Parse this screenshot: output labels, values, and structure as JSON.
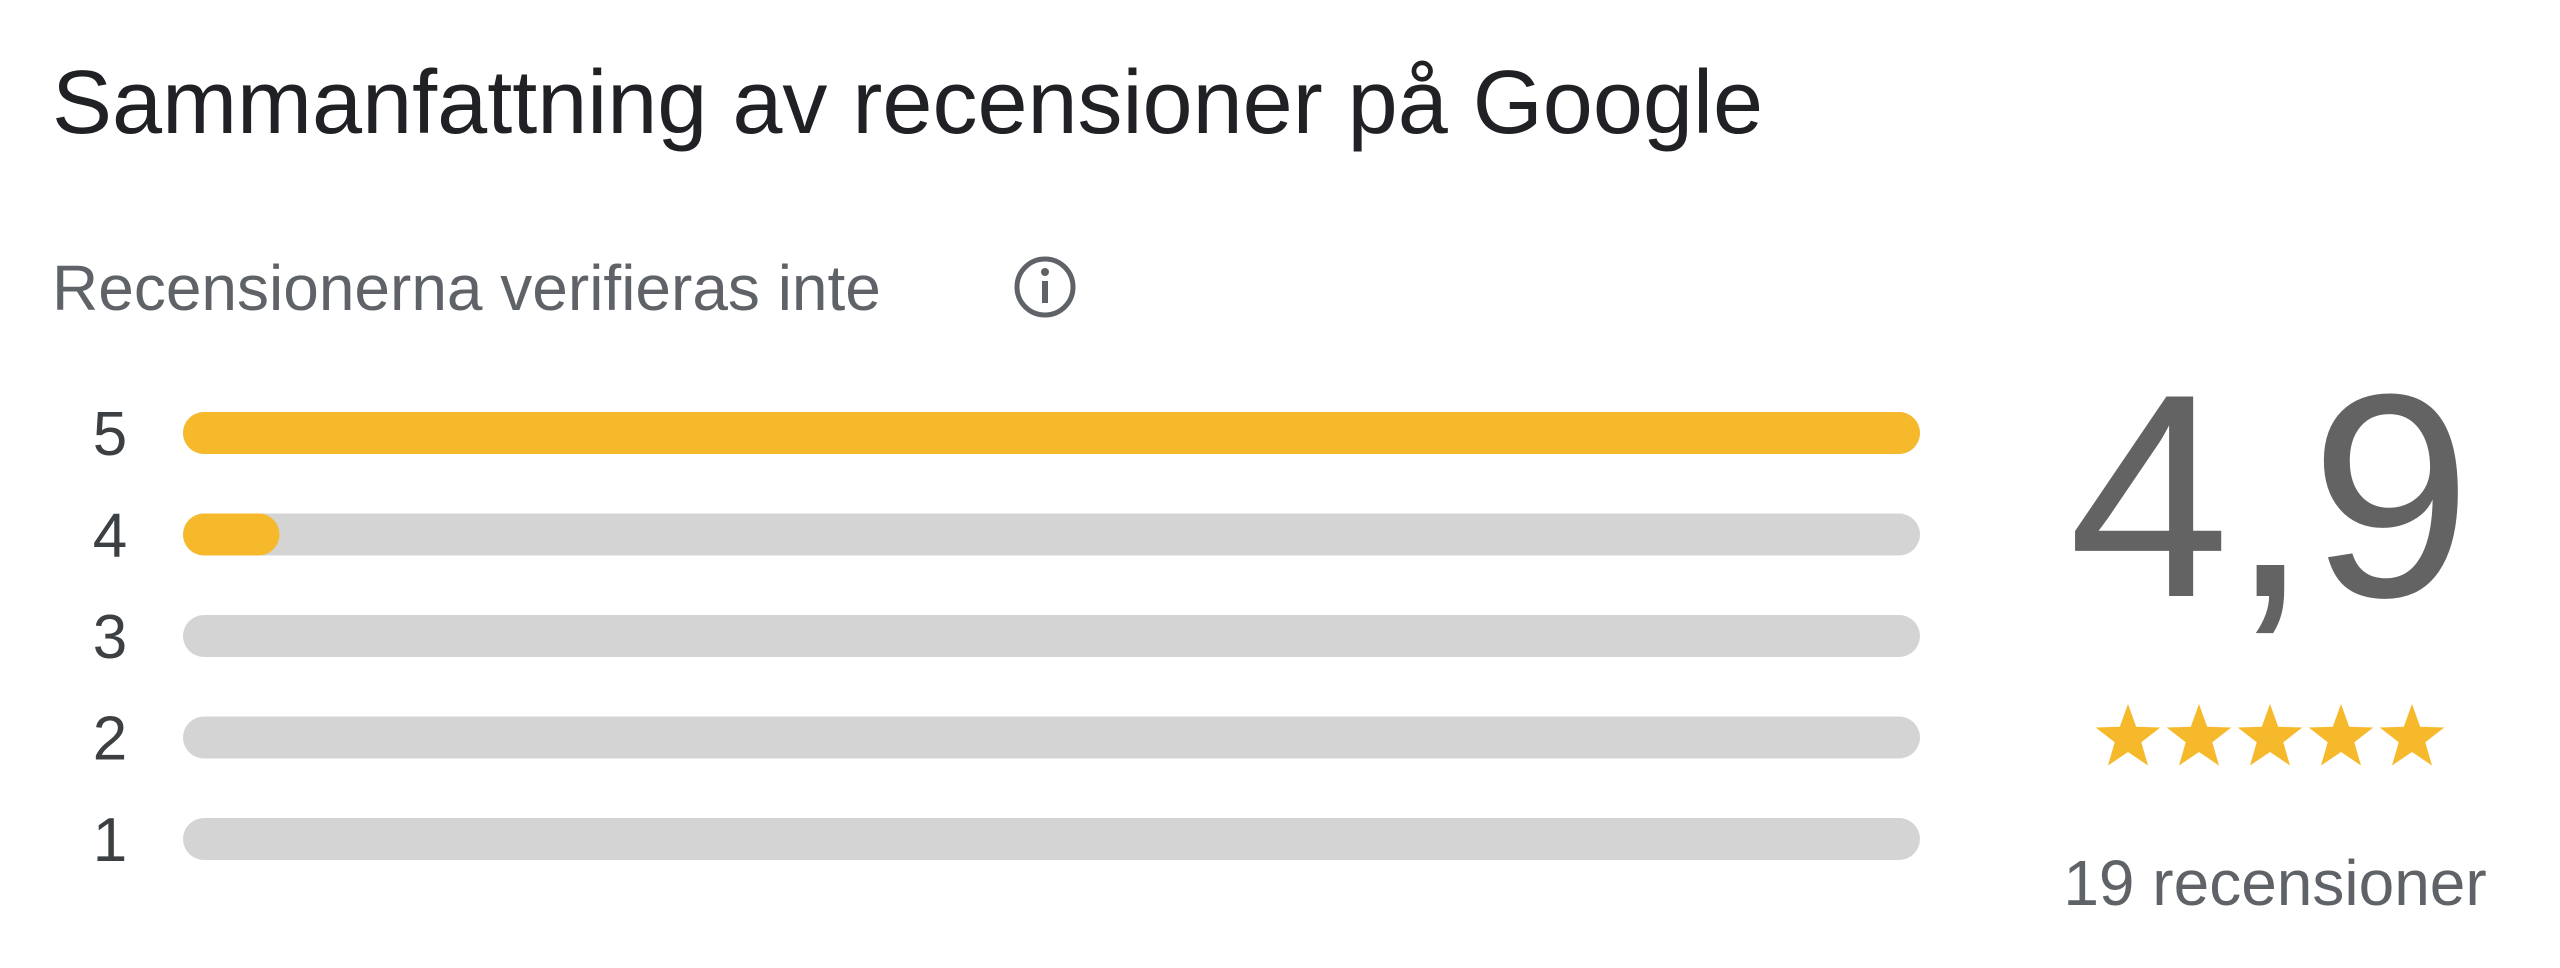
{
  "header": {
    "title": "Sammanfattning av recensioner på Google",
    "subtitle": "Recensionerna verifieras inte"
  },
  "chart_data": {
    "type": "bar",
    "orientation": "horizontal",
    "categories": [
      "5",
      "4",
      "3",
      "2",
      "1"
    ],
    "values": [
      18,
      1,
      0,
      0,
      0
    ],
    "color": "#f6b92b",
    "track_color": "#d4d4d4"
  },
  "summary": {
    "rating": "4,9",
    "review_count": "19 recensioner"
  }
}
